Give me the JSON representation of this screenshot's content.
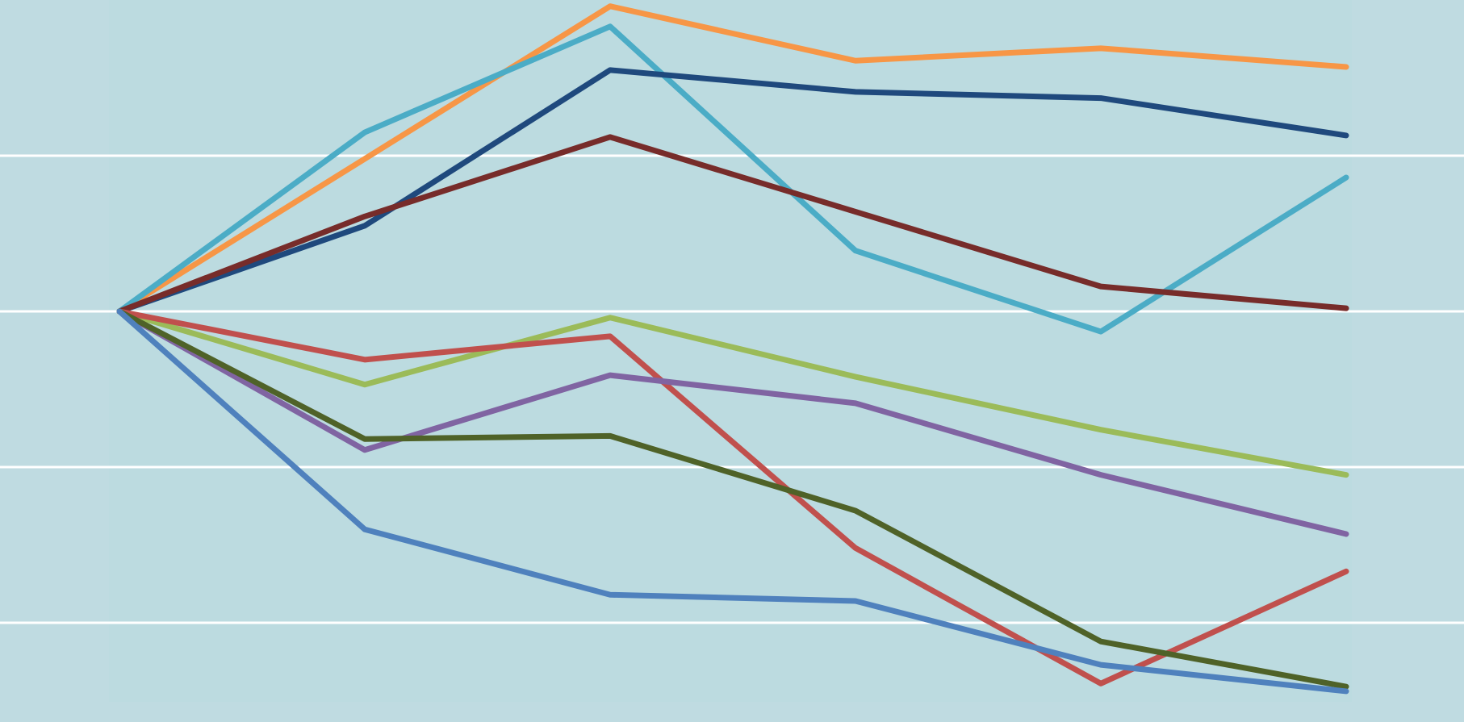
{
  "chart_data": {
    "type": "line",
    "title": "",
    "xlabel": "",
    "ylabel": "",
    "x": [
      1,
      2,
      3,
      4,
      5,
      6
    ],
    "ylim": [
      -2.5,
      2
    ],
    "grid": true,
    "gridlines_y": [
      1,
      0,
      -1,
      -2
    ],
    "legend": "none",
    "series": [
      {
        "color": "#f79646",
        "values": [
          0,
          0.98,
          1.96,
          1.61,
          1.69,
          1.57
        ]
      },
      {
        "color": "#4bacc6",
        "values": [
          0,
          1.15,
          1.83,
          0.39,
          -0.13,
          0.86
        ]
      },
      {
        "color": "#1f497d",
        "values": [
          0,
          0.55,
          1.55,
          1.41,
          1.37,
          1.13
        ]
      },
      {
        "color": "#772c2a",
        "values": [
          0,
          0.61,
          1.12,
          0.64,
          0.16,
          0.02
        ]
      },
      {
        "color": "#9bbb59",
        "values": [
          0,
          -0.47,
          -0.04,
          -0.42,
          -0.76,
          -1.05
        ]
      },
      {
        "color": "#c0504d",
        "values": [
          0,
          -0.31,
          -0.16,
          -1.52,
          -2.39,
          -1.67
        ]
      },
      {
        "color": "#8064a2",
        "values": [
          0,
          -0.89,
          -0.41,
          -0.59,
          -1.05,
          -1.43
        ]
      },
      {
        "color": "#4f6228",
        "values": [
          0,
          -0.82,
          -0.8,
          -1.28,
          -2.12,
          -2.41
        ]
      },
      {
        "color": "#4f81bd",
        "values": [
          0,
          -1.4,
          -1.82,
          -1.86,
          -2.27,
          -2.44
        ]
      }
    ]
  }
}
